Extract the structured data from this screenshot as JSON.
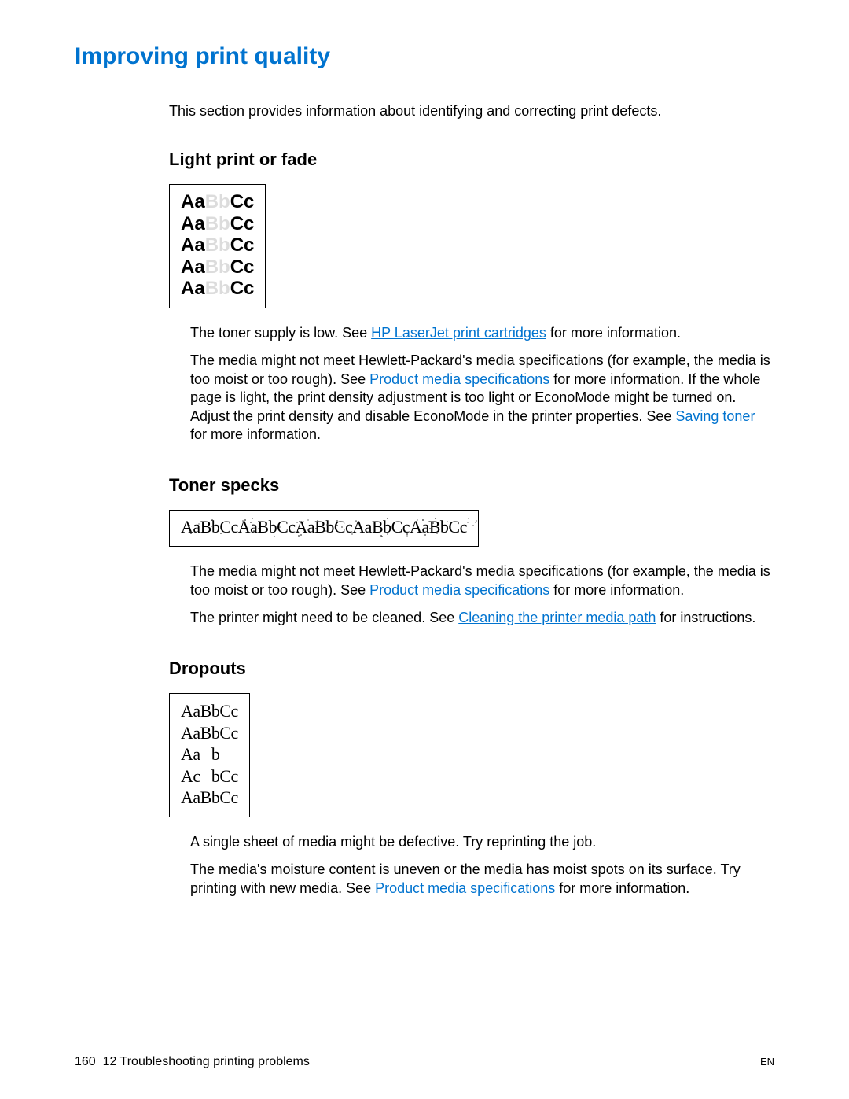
{
  "title": "Improving print quality",
  "title_color": "#0073cf",
  "intro": "This section provides information about identifying and correcting print defects.",
  "link_color": "#0073cf",
  "sections": {
    "light": {
      "heading": "Light print or fade",
      "sample": {
        "rows": 5,
        "seg_a": "Aa",
        "seg_b": "Bb",
        "seg_c": "Cc",
        "faded_color": "#dcdcdc"
      },
      "para1_pre": "The toner supply is low. See ",
      "para1_link": "HP LaserJet print cartridges",
      "para1_post": " for more information.",
      "para2_pre": "The media might not meet Hewlett-Packard's media specifications (for example, the media is too moist or too rough). See ",
      "para2_link1": "Product media specifications",
      "para2_mid": " for more information. If the whole page is light, the print density adjustment is too light or EconoMode might be turned on. Adjust the print density and disable EconoMode in the printer properties. See ",
      "para2_link2": "Saving toner",
      "para2_post": " for more information."
    },
    "toner": {
      "heading": "Toner specks",
      "sample": {
        "rows": 5,
        "text": "AaBbCc"
      },
      "para1_pre": "The media might not meet Hewlett-Packard's media specifications (for example, the media is too moist or too rough). See ",
      "para1_link": "Product media specifications",
      "para1_post": " for more information.",
      "para2_pre": "The printer might need to be cleaned. See ",
      "para2_link": "Cleaning the printer media path",
      "para2_post": " for instructions."
    },
    "dropouts": {
      "heading": "Dropouts",
      "sample_rows": [
        "AaBbCc",
        "AaBbCc",
        "AaBbCc",
        "AcBbCc",
        "AaBbCc"
      ],
      "para1": "A single sheet of media might be defective. Try reprinting the job.",
      "para2_pre": "The media's moisture content is uneven or the media has moist spots on its surface. Try printing with new media. See ",
      "para2_link": "Product media specifications",
      "para2_post": " for more information."
    }
  },
  "footer": {
    "page_num": "160",
    "chapter": "12 Troubleshooting printing problems",
    "lang": "EN"
  }
}
